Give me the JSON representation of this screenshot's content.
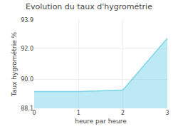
{
  "chart_data": {
    "type": "area",
    "title": "Evolution du taux d'hygrométrie",
    "xlabel": "heure par heure",
    "ylabel": "Taux hygrométrie %",
    "x": [
      0,
      1,
      2,
      3
    ],
    "values": [
      89.2,
      89.2,
      89.3,
      92.7
    ],
    "color": "#7ad4e8",
    "xlim": [
      0,
      3
    ],
    "ylim": [
      88.1,
      93.9
    ],
    "xticks": [
      0,
      1,
      2,
      3
    ],
    "yticks": [
      88.1,
      {
        "value": 90,
        "label": "90.0"
      },
      {
        "value": 92,
        "label": "92.0"
      },
      93.9
    ],
    "grid": true
  }
}
